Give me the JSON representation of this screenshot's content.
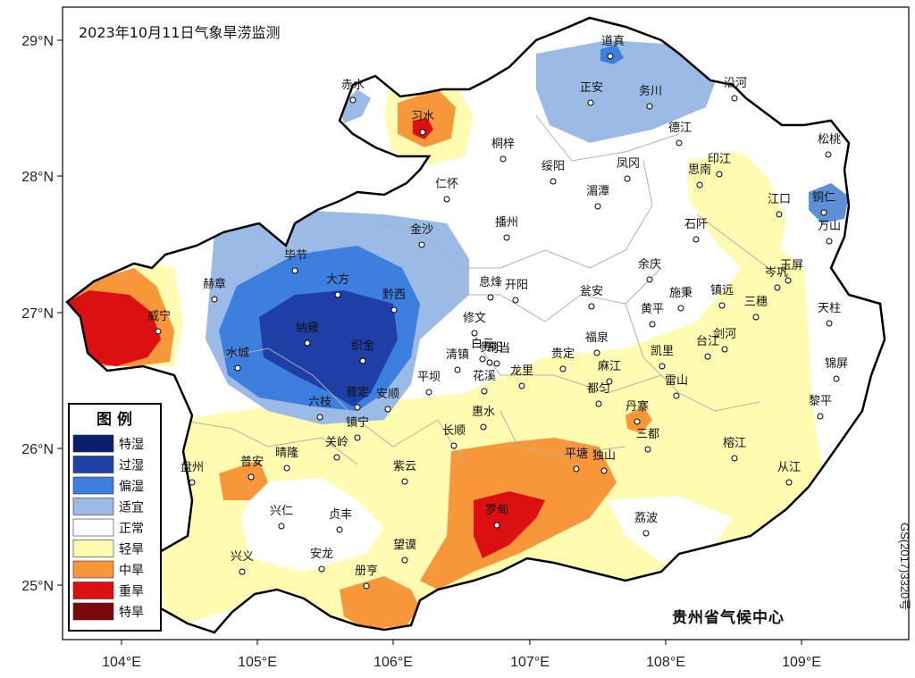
{
  "title": "2023年10月11日气象旱涝监测",
  "credit": "贵州省气候中心",
  "map_code": "GS(2017)3320号",
  "axes": {
    "lon_ticks": [
      "104°E",
      "105°E",
      "106°E",
      "107°E",
      "108°E",
      "109°E"
    ],
    "lat_ticks": [
      "29°N",
      "28°N",
      "27°N",
      "26°N",
      "25°N"
    ]
  },
  "legend": {
    "title": "图 例",
    "items": [
      {
        "label": "特湿",
        "color": "#0a1f6e"
      },
      {
        "label": "过湿",
        "color": "#1f3fa6"
      },
      {
        "label": "偏湿",
        "color": "#3c7fde"
      },
      {
        "label": "适宜",
        "color": "#9bbbe6"
      },
      {
        "label": "正常",
        "color": "#ffffff"
      },
      {
        "label": "轻旱",
        "color": "#fffbb0"
      },
      {
        "label": "中旱",
        "color": "#f8963a"
      },
      {
        "label": "重旱",
        "color": "#dc1010"
      },
      {
        "label": "特旱",
        "color": "#7a0a0a"
      }
    ]
  },
  "cities": [
    "道真",
    "赤水",
    "习水",
    "正安",
    "务川",
    "沿河",
    "桐梓",
    "德江",
    "松桃",
    "绥阳",
    "凤冈",
    "印江",
    "思南",
    "仁怀",
    "湄潭",
    "江口",
    "铜仁",
    "金沙",
    "播州",
    "石阡",
    "万山",
    "毕节",
    "大方",
    "余庆",
    "玉屏",
    "岑巩",
    "赫章",
    "威宁",
    "黔西",
    "息烽",
    "开阳",
    "瓮安",
    "施秉",
    "镇远",
    "三穗",
    "天柱",
    "纳雍",
    "修文",
    "黄平",
    "剑河",
    "织金",
    "白云",
    "贵阳",
    "福泉",
    "凯里",
    "台江",
    "水城",
    "清镇",
    "乌当",
    "贵定",
    "麻江",
    "锦屏",
    "平坝",
    "花溪",
    "龙里",
    "雷山",
    "普定",
    "安顺",
    "都匀",
    "黎平",
    "六枝",
    "惠水",
    "丹寨",
    "镇宁",
    "长顺",
    "三都",
    "关岭",
    "晴隆",
    "榕江",
    "盘州",
    "普安",
    "紫云",
    "平塘",
    "独山",
    "从江",
    "兴仁",
    "贞丰",
    "罗甸",
    "荔波",
    "兴义",
    "安龙",
    "望谟",
    "册亨"
  ]
}
